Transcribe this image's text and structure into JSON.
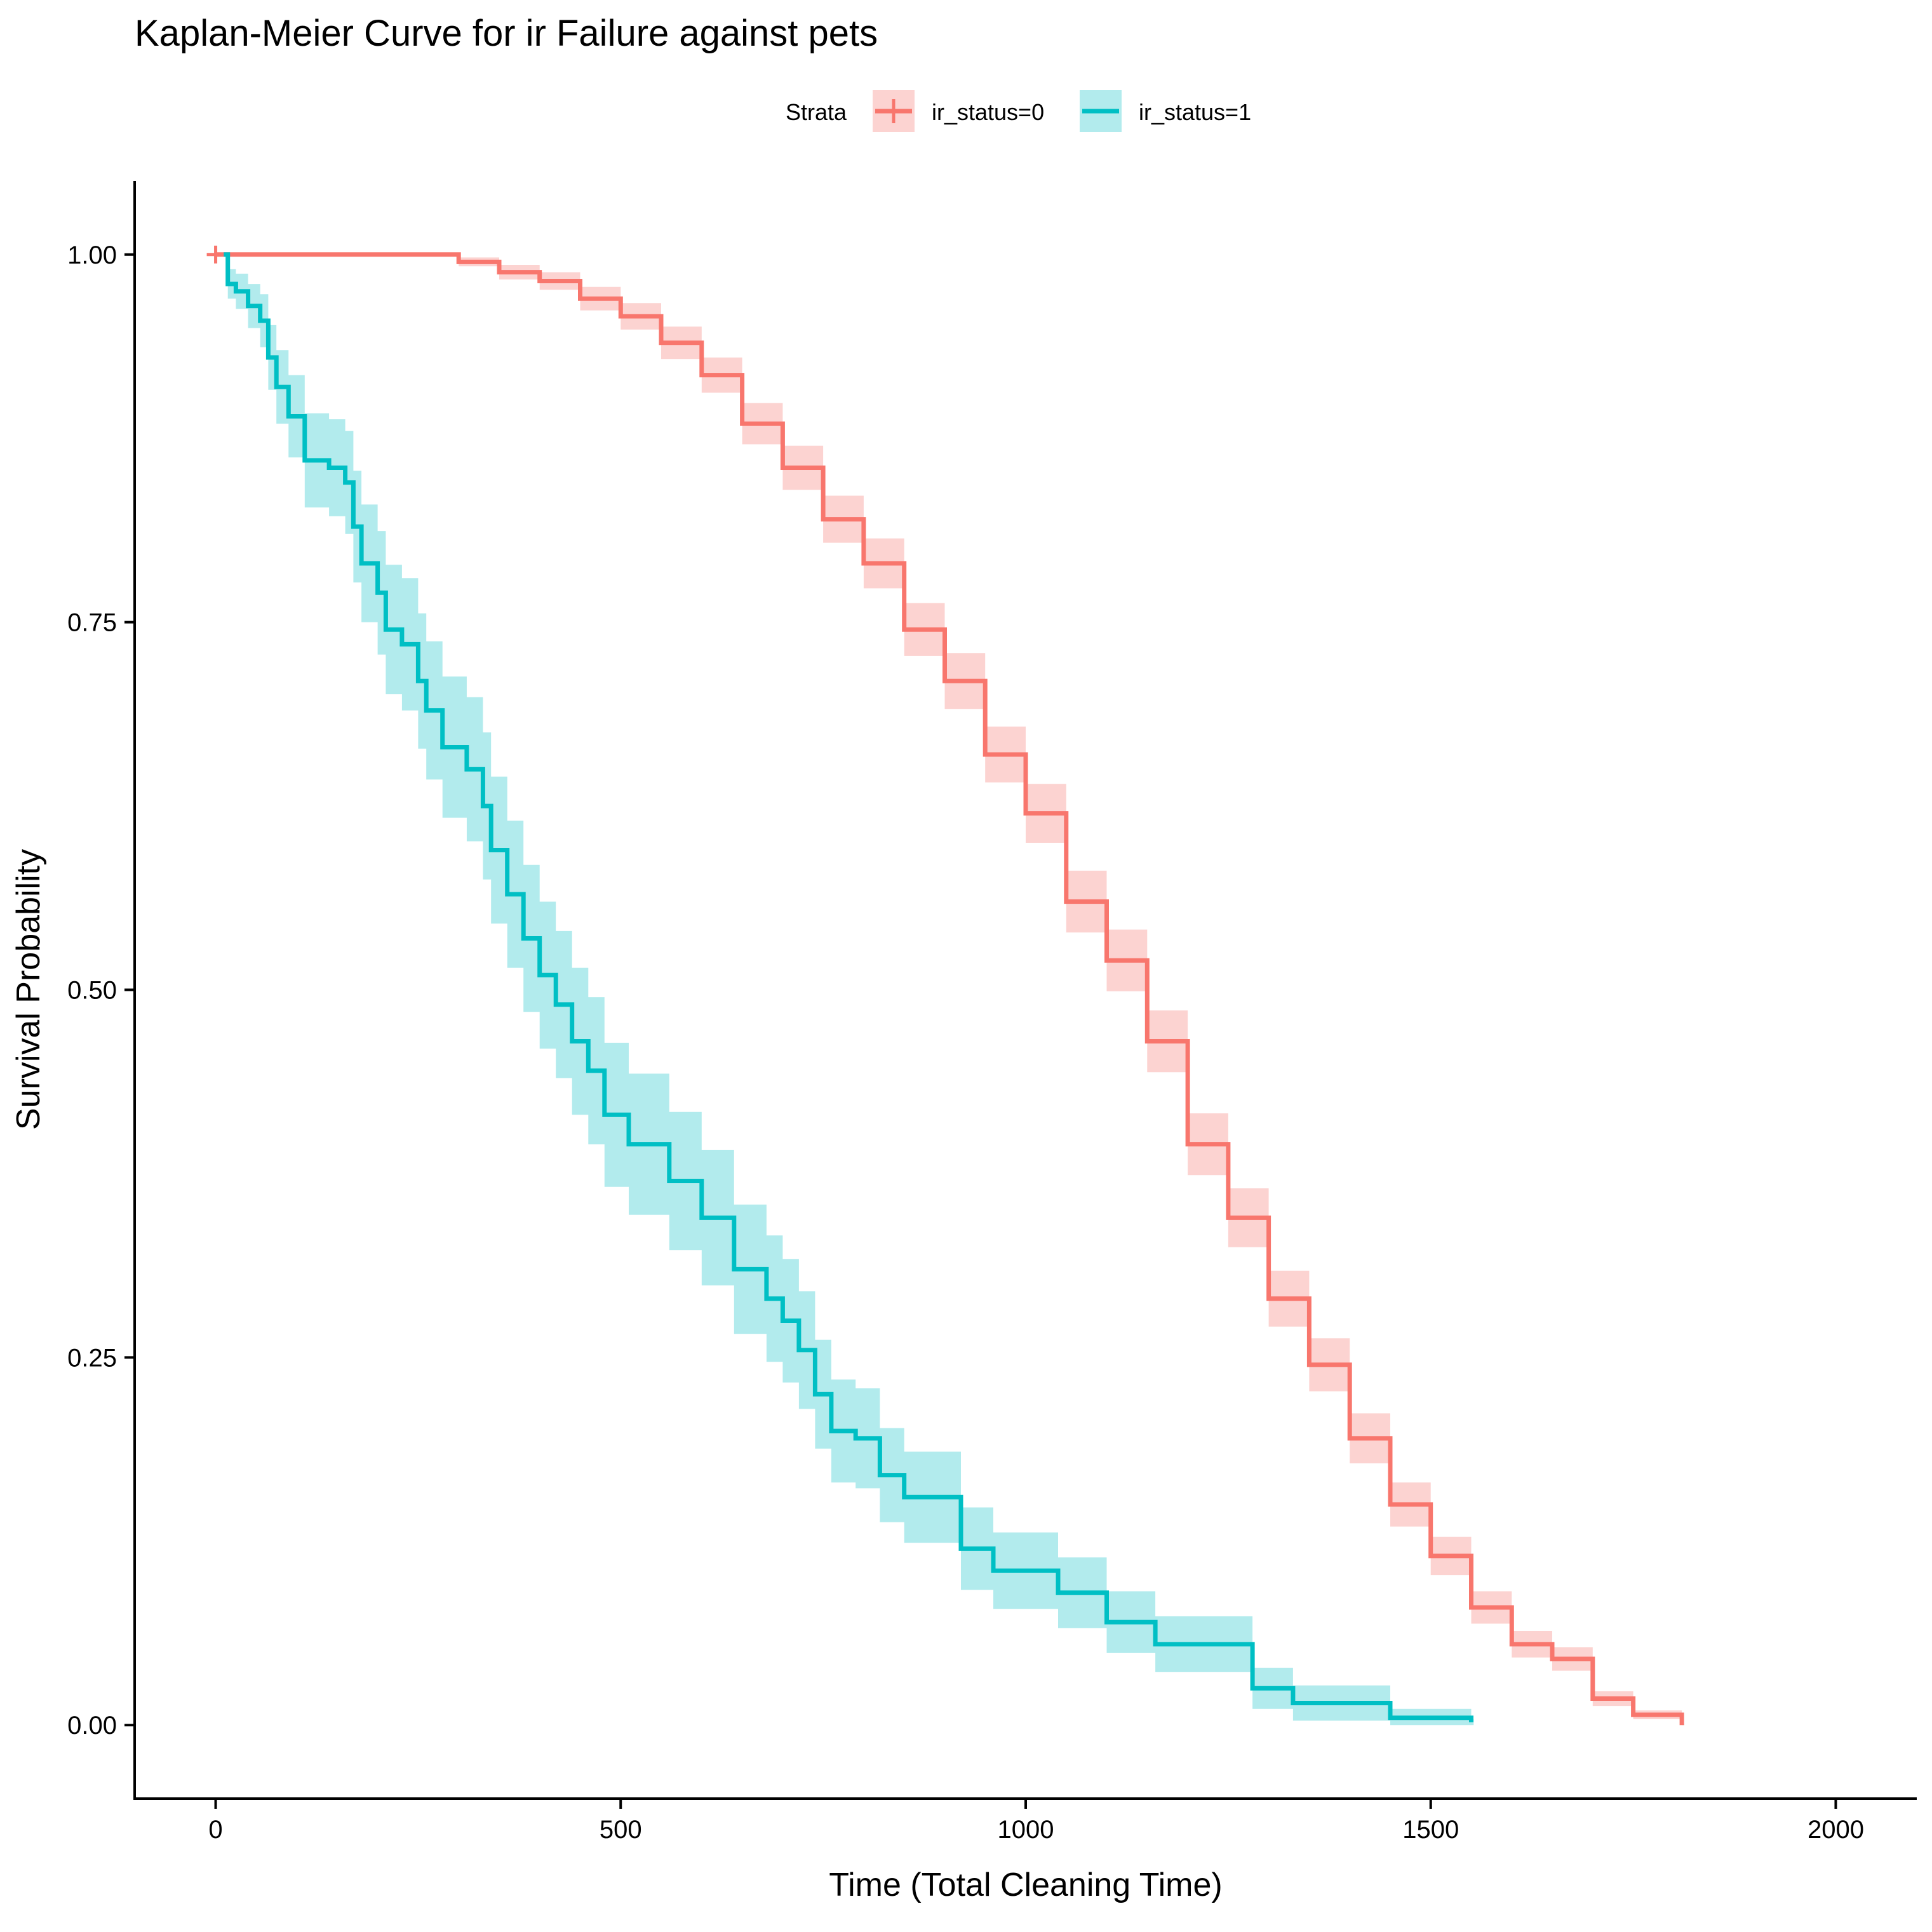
{
  "colors": {
    "ir_status_0": "#F8766D",
    "ir_status_0_ribbon": "#FCD3D1",
    "ir_status_1": "#00BFC4",
    "ir_status_1_ribbon": "#B2EBED",
    "axis": "#000000",
    "background": "#FFFFFF"
  },
  "chart_data": {
    "type": "line",
    "subtype": "kaplan-meier step curve with confidence bands",
    "title": "Kaplan-Meier Curve for ir Failure against pets",
    "xlabel": "Time (Total Cleaning Time)",
    "ylabel": "Survival Probability",
    "xlim": [
      -100,
      2100
    ],
    "ylim": [
      -0.05,
      1.05
    ],
    "x_ticks": [
      0,
      500,
      1000,
      1500,
      2000
    ],
    "x_tick_labels": [
      "0",
      "500",
      "1000",
      "1500",
      "2000"
    ],
    "y_ticks": [
      0,
      0.25,
      0.5,
      0.75,
      1
    ],
    "y_tick_labels": [
      "0.00",
      "0.25",
      "0.50",
      "0.75",
      "1.00"
    ],
    "grid": false,
    "legend": {
      "title": "Strata",
      "position": "top",
      "entries": [
        "ir_status=0",
        "ir_status=1"
      ]
    },
    "series": [
      {
        "name": "ir_status=0",
        "color": "#F8766D",
        "points": [
          [
            0,
            1.0
          ],
          [
            240,
            1.0
          ],
          [
            300,
            0.995
          ],
          [
            350,
            0.988
          ],
          [
            400,
            0.982
          ],
          [
            450,
            0.97
          ],
          [
            500,
            0.958
          ],
          [
            550,
            0.94
          ],
          [
            600,
            0.918
          ],
          [
            650,
            0.885
          ],
          [
            700,
            0.855
          ],
          [
            750,
            0.82
          ],
          [
            800,
            0.79
          ],
          [
            850,
            0.745
          ],
          [
            900,
            0.71
          ],
          [
            950,
            0.66
          ],
          [
            1000,
            0.62
          ],
          [
            1050,
            0.56
          ],
          [
            1100,
            0.52
          ],
          [
            1150,
            0.465
          ],
          [
            1200,
            0.395
          ],
          [
            1250,
            0.345
          ],
          [
            1300,
            0.29
          ],
          [
            1350,
            0.245
          ],
          [
            1400,
            0.195
          ],
          [
            1450,
            0.15
          ],
          [
            1500,
            0.115
          ],
          [
            1550,
            0.08
          ],
          [
            1600,
            0.055
          ],
          [
            1650,
            0.045
          ],
          [
            1700,
            0.018
          ],
          [
            1750,
            0.007
          ],
          [
            1810,
            0.0
          ]
        ],
        "ci_halfwidth": [
          0,
          0,
          0.003,
          0.005,
          0.006,
          0.008,
          0.009,
          0.011,
          0.012,
          0.014,
          0.015,
          0.016,
          0.017,
          0.018,
          0.019,
          0.019,
          0.02,
          0.021,
          0.021,
          0.021,
          0.021,
          0.02,
          0.019,
          0.018,
          0.017,
          0.015,
          0.013,
          0.011,
          0.009,
          0.008,
          0.005,
          0.003,
          0.001
        ],
        "censor_marks": [
          [
            0,
            1.0
          ]
        ]
      },
      {
        "name": "ir_status=1",
        "color": "#00BFC4",
        "points": [
          [
            10,
            1.0
          ],
          [
            15,
            0.98
          ],
          [
            25,
            0.975
          ],
          [
            40,
            0.965
          ],
          [
            55,
            0.955
          ],
          [
            65,
            0.93
          ],
          [
            75,
            0.91
          ],
          [
            90,
            0.89
          ],
          [
            110,
            0.86
          ],
          [
            140,
            0.855
          ],
          [
            160,
            0.845
          ],
          [
            170,
            0.815
          ],
          [
            180,
            0.79
          ],
          [
            200,
            0.77
          ],
          [
            210,
            0.745
          ],
          [
            230,
            0.735
          ],
          [
            250,
            0.71
          ],
          [
            260,
            0.69
          ],
          [
            280,
            0.665
          ],
          [
            310,
            0.65
          ],
          [
            330,
            0.625
          ],
          [
            340,
            0.595
          ],
          [
            360,
            0.565
          ],
          [
            380,
            0.535
          ],
          [
            400,
            0.51
          ],
          [
            420,
            0.49
          ],
          [
            440,
            0.465
          ],
          [
            460,
            0.445
          ],
          [
            480,
            0.415
          ],
          [
            510,
            0.395
          ],
          [
            560,
            0.37
          ],
          [
            600,
            0.345
          ],
          [
            640,
            0.31
          ],
          [
            680,
            0.29
          ],
          [
            700,
            0.275
          ],
          [
            720,
            0.255
          ],
          [
            740,
            0.225
          ],
          [
            760,
            0.2
          ],
          [
            790,
            0.195
          ],
          [
            820,
            0.17
          ],
          [
            850,
            0.155
          ],
          [
            920,
            0.12
          ],
          [
            960,
            0.105
          ],
          [
            1040,
            0.09
          ],
          [
            1100,
            0.07
          ],
          [
            1160,
            0.055
          ],
          [
            1280,
            0.025
          ],
          [
            1330,
            0.015
          ],
          [
            1450,
            0.005
          ],
          [
            1550,
            0.002
          ]
        ],
        "ci_halfwidth": [
          0,
          0.01,
          0.012,
          0.015,
          0.018,
          0.022,
          0.025,
          0.028,
          0.032,
          0.033,
          0.035,
          0.038,
          0.04,
          0.042,
          0.044,
          0.045,
          0.046,
          0.047,
          0.048,
          0.049,
          0.05,
          0.05,
          0.05,
          0.05,
          0.05,
          0.05,
          0.05,
          0.05,
          0.049,
          0.048,
          0.047,
          0.046,
          0.044,
          0.043,
          0.042,
          0.04,
          0.037,
          0.035,
          0.034,
          0.032,
          0.031,
          0.028,
          0.026,
          0.024,
          0.021,
          0.019,
          0.014,
          0.012,
          0.006,
          0.002
        ],
        "censor_marks": []
      }
    ]
  }
}
